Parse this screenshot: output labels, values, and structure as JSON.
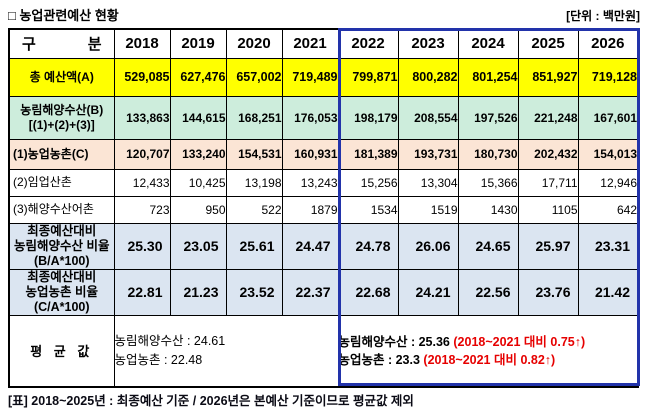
{
  "title": "□ 농업관련예산 현황",
  "unit": "[단위 : 백만원]",
  "header": {
    "gu": "구",
    "bun": "분",
    "years": [
      "2018",
      "2019",
      "2020",
      "2021",
      "2022",
      "2023",
      "2024",
      "2025",
      "2026"
    ]
  },
  "rows": [
    {
      "label": "총  예산액(A)",
      "values": [
        "529,085",
        "627,476",
        "657,002",
        "719,489",
        "799,871",
        "800,282",
        "801,254",
        "851,927",
        "719,128"
      ]
    },
    {
      "label": "농림해양수산(B)\n[(1)+(2)+(3)]",
      "values": [
        "133,863",
        "144,615",
        "168,251",
        "176,053",
        "198,179",
        "208,554",
        "197,526",
        "221,248",
        "167,601"
      ]
    },
    {
      "label": "(1)농업농촌(C)",
      "values": [
        "120,707",
        "133,240",
        "154,531",
        "160,931",
        "181,389",
        "193,731",
        "180,730",
        "202,432",
        "154,013"
      ]
    },
    {
      "label": "(2)임업산촌",
      "values": [
        "12,433",
        "10,425",
        "13,198",
        "13,243",
        "15,256",
        "13,304",
        "15,366",
        "17,711",
        "12,946"
      ]
    },
    {
      "label": "(3)해양수산어촌",
      "values": [
        "723",
        "950",
        "522",
        "1879",
        "1534",
        "1519",
        "1430",
        "1105",
        "642"
      ]
    },
    {
      "label": "최종예산대비\n농림해양수산 비율\n(B/A*100)",
      "values": [
        "25.30",
        "23.05",
        "25.61",
        "24.47",
        "24.78",
        "26.06",
        "24.65",
        "25.97",
        "23.31"
      ]
    },
    {
      "label": "최종예산대비\n농업농촌 비율\n(C/A*100)",
      "values": [
        "22.81",
        "21.23",
        "23.52",
        "22.37",
        "22.68",
        "24.21",
        "22.56",
        "23.76",
        "21.42"
      ]
    }
  ],
  "average": {
    "label": "평 균 값",
    "left_lines": [
      "농림해양수산 : 24.61",
      "농업농촌 : 22.48"
    ],
    "right_lines": [
      {
        "value": "농림해양수산  :  25.36",
        "note": "(2018~2021 대비 0.75↑)"
      },
      {
        "value": "농업농촌    :    23.3",
        "note": "(2018~2021 대비 0.82↑)"
      }
    ]
  },
  "footnote": "[표] 2018~2025년 : 최종예산 기준 / 2026년은 본예산 기준이므로 평균값 제외",
  "colors": {
    "total_row_bg": "#FFFF00",
    "b_row_bg": "#CDEDDC",
    "c_row_bg": "#FBE5D5",
    "ratio_row_bg": "#DBE5F1",
    "highlight_border": "#2233AA",
    "note_red": "#E60000",
    "grid": "#000000"
  }
}
